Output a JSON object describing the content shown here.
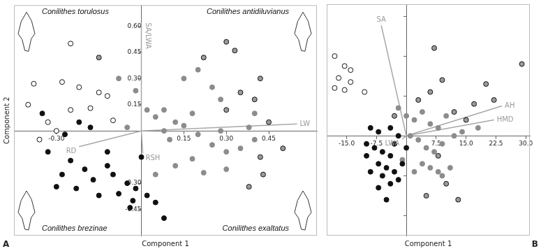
{
  "chart_data": [
    {
      "type": "scatter",
      "title": "A",
      "xlabel": "Component 1",
      "ylabel": "Component 2",
      "xlim": [
        -0.45,
        0.62
      ],
      "ylim": [
        -0.6,
        0.72
      ],
      "xticks": [
        {
          "value": -0.3,
          "label": "-0.30"
        },
        {
          "value": 0.15,
          "label": "0.15"
        },
        {
          "value": 0.3,
          "label": "0.30"
        },
        {
          "value": 0.45,
          "label": "0.45"
        }
      ],
      "yticks": [
        {
          "value": -0.45,
          "label": "-0.45"
        },
        {
          "value": -0.3,
          "label": "-0.30"
        },
        {
          "value": 0.15,
          "label": "0.15"
        },
        {
          "value": 0.3,
          "label": "0.30"
        },
        {
          "value": 0.45,
          "label": "0.45"
        },
        {
          "value": 0.6,
          "label": "0.60"
        }
      ],
      "grid": false,
      "series": [
        {
          "color": "#ffffff",
          "marker": "open_circle",
          "values": [
            [
              -0.25,
              0.5
            ],
            [
              -0.38,
              0.27
            ],
            [
              -0.28,
              0.28
            ],
            [
              -0.22,
              0.25
            ],
            [
              -0.15,
              0.22
            ],
            [
              -0.4,
              0.15
            ],
            [
              -0.25,
              0.12
            ],
            [
              -0.33,
              0.05
            ],
            [
              -0.12,
              0.2
            ],
            [
              -0.18,
              0.13
            ],
            [
              -0.3,
              0.0
            ],
            [
              -0.36,
              -0.05
            ],
            [
              -0.1,
              0.06
            ]
          ]
        },
        {
          "color": "#111111",
          "marker": "circle",
          "values": [
            [
              -0.35,
              0.1
            ],
            [
              -0.22,
              0.05
            ],
            [
              -0.18,
              0.02
            ],
            [
              -0.27,
              -0.02
            ],
            [
              -0.33,
              -0.12
            ],
            [
              -0.25,
              -0.17
            ],
            [
              -0.2,
              -0.22
            ],
            [
              -0.12,
              -0.2
            ],
            [
              -0.28,
              -0.25
            ],
            [
              -0.17,
              -0.28
            ],
            [
              -0.1,
              -0.25
            ],
            [
              -0.05,
              -0.3
            ],
            [
              -0.08,
              -0.36
            ],
            [
              -0.02,
              -0.33
            ],
            [
              -0.15,
              -0.37
            ],
            [
              -0.23,
              -0.33
            ],
            [
              0.02,
              -0.37
            ],
            [
              0.05,
              -0.41
            ],
            [
              0.08,
              -0.5
            ],
            [
              -0.03,
              -0.4
            ],
            [
              -0.04,
              -0.44
            ],
            [
              -0.3,
              -0.32
            ],
            [
              -0.12,
              -0.12
            ],
            [
              0.0,
              -0.15
            ]
          ]
        },
        {
          "color": "#8c8c8c",
          "marker": "circle",
          "values": [
            [
              -0.08,
              0.3
            ],
            [
              -0.02,
              0.23
            ],
            [
              0.02,
              0.12
            ],
            [
              0.05,
              0.08
            ],
            [
              -0.05,
              0.02
            ],
            [
              0.08,
              0.0
            ],
            [
              0.12,
              0.05
            ],
            [
              0.15,
              0.03
            ],
            [
              0.1,
              -0.05
            ],
            [
              0.18,
              0.1
            ],
            [
              0.2,
              -0.02
            ],
            [
              0.25,
              -0.08
            ],
            [
              0.3,
              -0.12
            ],
            [
              0.35,
              -0.1
            ],
            [
              0.4,
              -0.05
            ],
            [
              0.38,
              0.02
            ],
            [
              0.28,
              0.0
            ],
            [
              0.18,
              -0.16
            ],
            [
              0.12,
              -0.2
            ],
            [
              0.22,
              -0.24
            ],
            [
              0.3,
              -0.22
            ],
            [
              0.05,
              -0.25
            ],
            [
              0.28,
              0.18
            ],
            [
              0.15,
              0.3
            ],
            [
              0.2,
              0.35
            ],
            [
              0.25,
              0.25
            ],
            [
              0.4,
              0.1
            ],
            [
              0.08,
              0.12
            ]
          ]
        },
        {
          "color": "#9a9a9a",
          "marker": "outlined_circle",
          "values": [
            [
              -0.15,
              0.42
            ],
            [
              0.3,
              0.51
            ],
            [
              0.33,
              0.46
            ],
            [
              0.22,
              0.42
            ],
            [
              0.3,
              0.12
            ],
            [
              0.35,
              0.22
            ],
            [
              0.42,
              0.3
            ],
            [
              0.4,
              0.18
            ],
            [
              0.45,
              0.05
            ],
            [
              0.42,
              -0.15
            ],
            [
              0.5,
              -0.1
            ],
            [
              0.38,
              -0.32
            ],
            [
              0.43,
              -0.25
            ]
          ]
        }
      ],
      "loadings": [
        {
          "label": "SA/LWA",
          "x": [
            0,
            0.0
          ],
          "y": [
            0,
            0.62
          ]
        },
        {
          "label": "LW",
          "x": [
            0,
            0.55
          ],
          "y": [
            0,
            0.04
          ]
        },
        {
          "label": "RD",
          "x": [
            0,
            -0.22
          ],
          "y": [
            0,
            -0.09
          ]
        },
        {
          "label": "RSH",
          "x": [
            0,
            0.005
          ],
          "y": [
            0,
            -0.13
          ]
        }
      ],
      "annotations": [
        "Conilithes torulosus",
        "Conilithes antidiluvianus",
        "Conilithes brezinae",
        "Conilithes exaltatus"
      ]
    },
    {
      "type": "scatter",
      "title": "B",
      "xlabel": "Component 1",
      "xlim": [
        -20,
        31
      ],
      "ylim": [
        -25,
        33
      ],
      "xticks": [
        {
          "value": -15,
          "label": "-15.0"
        },
        -7.5,
        7.5,
        {
          "value": 15,
          "label": "15.0"
        },
        22.5,
        {
          "value": 30,
          "label": "30.0"
        }
      ],
      "yticks": [
        -20,
        -10,
        10,
        20,
        30
      ],
      "tick_labels": "x",
      "grid": false,
      "series": [
        {
          "color": "#ffffff",
          "marker": "open_circle",
          "values": [
            [
              -18,
              20
            ],
            [
              -15.5,
              17.5
            ],
            [
              -14,
              16.5
            ],
            [
              -17,
              14.5
            ],
            [
              -14,
              13.5
            ],
            [
              -18,
              12
            ],
            [
              -15.5,
              11.5
            ],
            [
              -10.5,
              11
            ]
          ]
        },
        {
          "color": "#111111",
          "marker": "circle",
          "values": [
            [
              -9,
              2
            ],
            [
              -7,
              1
            ],
            [
              -4,
              2
            ],
            [
              -2,
              0
            ],
            [
              -8,
              -3
            ],
            [
              -6,
              -4
            ],
            [
              -10,
              -5
            ],
            [
              -4,
              -5
            ],
            [
              -7,
              -7
            ],
            [
              -5,
              -8
            ],
            [
              -9,
              -9
            ],
            [
              -3,
              -9
            ],
            [
              -6,
              -10
            ],
            [
              -2,
              -11
            ],
            [
              -4,
              -12
            ],
            [
              -7,
              -13
            ],
            [
              -5,
              -16
            ],
            [
              -1,
              -7
            ],
            [
              0,
              -3
            ],
            [
              -3,
              -2
            ],
            [
              -10,
              -2
            ]
          ]
        },
        {
          "color": "#8c8c8c",
          "marker": "circle",
          "values": [
            [
              -2,
              7
            ],
            [
              0,
              5
            ],
            [
              2,
              4
            ],
            [
              4,
              6
            ],
            [
              6,
              3
            ],
            [
              8,
              2
            ],
            [
              10,
              5
            ],
            [
              3,
              -1
            ],
            [
              5,
              -3
            ],
            [
              7,
              -4
            ],
            [
              9,
              -2
            ],
            [
              4,
              -7
            ],
            [
              6,
              -8
            ],
            [
              8,
              -9
            ],
            [
              11,
              -8
            ],
            [
              12,
              0
            ],
            [
              14,
              1
            ],
            [
              18,
              2
            ],
            [
              -1,
              -6
            ],
            [
              2,
              -9
            ],
            [
              9,
              -10
            ],
            [
              1,
              0
            ]
          ]
        },
        {
          "color": "#9a9a9a",
          "marker": "outlined_circle",
          "values": [
            [
              -3,
              5
            ],
            [
              3,
              9
            ],
            [
              6,
              11
            ],
            [
              9,
              14
            ],
            [
              12,
              6
            ],
            [
              15,
              4
            ],
            [
              17,
              8
            ],
            [
              20,
              13
            ],
            [
              22,
              9
            ],
            [
              29,
              18
            ],
            [
              10,
              -12
            ],
            [
              8,
              -5
            ],
            [
              13,
              -16
            ],
            [
              5,
              -15
            ],
            [
              7,
              22
            ]
          ]
        }
      ],
      "loadings": [
        {
          "label": "SA",
          "x": [
            0,
            -6.3
          ],
          "y": [
            0,
            27.7
          ]
        },
        {
          "label": "AH",
          "x": [
            0,
            24
          ],
          "y": [
            0,
            7.5
          ]
        },
        {
          "label": "HMD",
          "x": [
            0,
            22
          ],
          "y": [
            0,
            4
          ]
        },
        {
          "label": "LWA",
          "x": [
            0,
            -1
          ],
          "y": [
            0,
            -0.8
          ]
        }
      ]
    }
  ]
}
